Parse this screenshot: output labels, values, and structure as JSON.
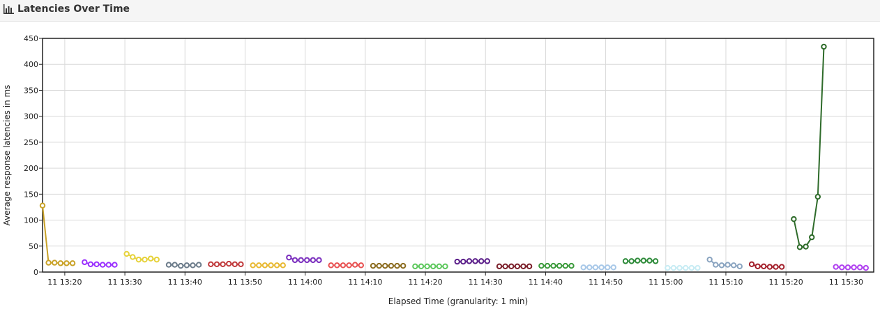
{
  "header": {
    "title": "Latencies Over Time",
    "icon": "bar-chart-icon"
  },
  "chart_data": {
    "type": "line",
    "title": "Latencies Over Time",
    "xlabel": "Elapsed Time (granularity: 1 min)",
    "ylabel": "Average response latencies in ms",
    "ylim": [
      0,
      450
    ],
    "yticks": [
      0,
      50,
      100,
      150,
      200,
      250,
      300,
      350,
      400,
      450
    ],
    "xlim_minutes": [
      796.3,
      934.6
    ],
    "xticks": [
      {
        "label": "11 13:20",
        "minute": 800
      },
      {
        "label": "11 13:30",
        "minute": 810
      },
      {
        "label": "11 13:40",
        "minute": 820
      },
      {
        "label": "11 13:50",
        "minute": 830
      },
      {
        "label": "11 14:00",
        "minute": 840
      },
      {
        "label": "11 14:10",
        "minute": 850
      },
      {
        "label": "11 14:20",
        "minute": 860
      },
      {
        "label": "11 14:30",
        "minute": 870
      },
      {
        "label": "11 14:40",
        "minute": 880
      },
      {
        "label": "11 14:50",
        "minute": 890
      },
      {
        "label": "11 15:00",
        "minute": 900
      },
      {
        "label": "11 15:10",
        "minute": 910
      },
      {
        "label": "11 15:20",
        "minute": 920
      },
      {
        "label": "11 15:30",
        "minute": 930
      }
    ],
    "grid": true,
    "series": [
      {
        "color": "#c9a227",
        "x": [
          796.3,
          797.3,
          798.3,
          799.3,
          800.3,
          801.3
        ],
        "y": [
          128,
          18,
          18,
          17,
          17,
          17
        ]
      },
      {
        "color": "#9b30ff",
        "x": [
          803.3,
          804.3,
          805.3,
          806.3,
          807.3,
          808.3
        ],
        "y": [
          19,
          15,
          15,
          14,
          14,
          14
        ]
      },
      {
        "color": "#e6d23a",
        "x": [
          810.3,
          811.3,
          812.3,
          813.3,
          814.3,
          815.3
        ],
        "y": [
          35,
          29,
          24,
          24,
          26,
          24
        ]
      },
      {
        "color": "#6b7b8a",
        "x": [
          817.3,
          818.3,
          819.3,
          820.3,
          821.3,
          822.3
        ],
        "y": [
          14,
          14,
          12,
          13,
          13,
          14
        ]
      },
      {
        "color": "#c0393b",
        "x": [
          824.3,
          825.3,
          826.3,
          827.3,
          828.3,
          829.3
        ],
        "y": [
          15,
          15,
          15,
          16,
          15,
          15
        ]
      },
      {
        "color": "#e8b830",
        "x": [
          831.3,
          832.3,
          833.3,
          834.3,
          835.3,
          836.3
        ],
        "y": [
          13,
          13,
          13,
          13,
          13,
          13
        ]
      },
      {
        "color": "#7b2fbe",
        "x": [
          837.3,
          838.3,
          839.3,
          840.3,
          841.3,
          842.3
        ],
        "y": [
          28,
          23,
          23,
          23,
          23,
          23
        ]
      },
      {
        "color": "#e85050",
        "x": [
          844.3,
          845.3,
          846.3,
          847.3,
          848.3,
          849.3
        ],
        "y": [
          13,
          13,
          13,
          13,
          14,
          13
        ]
      },
      {
        "color": "#8b6b1e",
        "x": [
          851.3,
          852.3,
          853.3,
          854.3,
          855.3,
          856.3
        ],
        "y": [
          12,
          12,
          12,
          12,
          12,
          12
        ]
      },
      {
        "color": "#5cc85c",
        "x": [
          858.3,
          859.3,
          860.3,
          861.3,
          862.3,
          863.3
        ],
        "y": [
          11,
          11,
          11,
          11,
          11,
          11
        ]
      },
      {
        "color": "#5b1f8a",
        "x": [
          865.3,
          866.3,
          867.3,
          868.3,
          869.3,
          870.3
        ],
        "y": [
          20,
          20,
          21,
          21,
          21,
          21
        ]
      },
      {
        "color": "#7b1f2a",
        "x": [
          872.3,
          873.3,
          874.3,
          875.3,
          876.3,
          877.3
        ],
        "y": [
          11,
          11,
          11,
          11,
          11,
          11
        ]
      },
      {
        "color": "#3a9a3a",
        "x": [
          879.3,
          880.3,
          881.3,
          882.3,
          883.3,
          884.3
        ],
        "y": [
          12,
          12,
          12,
          12,
          12,
          12
        ]
      },
      {
        "color": "#a8c8e8",
        "x": [
          886.3,
          887.3,
          888.3,
          889.3,
          890.3,
          891.3
        ],
        "y": [
          9,
          9,
          9,
          9,
          9,
          9
        ]
      },
      {
        "color": "#2e8b3a",
        "x": [
          893.3,
          894.3,
          895.3,
          896.3,
          897.3,
          898.3
        ],
        "y": [
          21,
          21,
          22,
          22,
          22,
          21
        ]
      },
      {
        "color": "#c8ecf4",
        "x": [
          900.3,
          901.3,
          902.3,
          903.3,
          904.3,
          905.3
        ],
        "y": [
          8,
          8,
          8,
          8,
          8,
          8
        ]
      },
      {
        "color": "#8aa4c0",
        "x": [
          907.3,
          908.3,
          909.3,
          910.3,
          911.3,
          912.3
        ],
        "y": [
          24,
          14,
          13,
          14,
          13,
          11
        ]
      },
      {
        "color": "#a31f2a",
        "x": [
          914.3,
          915.3,
          916.3,
          917.3,
          918.3,
          919.3
        ],
        "y": [
          15,
          11,
          11,
          10,
          10,
          10
        ]
      },
      {
        "color": "#2e6b2a",
        "x": [
          921.3,
          922.3,
          923.3,
          924.3,
          925.3,
          926.3
        ],
        "y": [
          102,
          48,
          49,
          67,
          145,
          434
        ]
      },
      {
        "color": "#b040f0",
        "x": [
          928.3,
          929.3,
          930.3,
          931.3,
          932.3,
          933.3
        ],
        "y": [
          10,
          9,
          9,
          9,
          9,
          8
        ]
      }
    ]
  }
}
